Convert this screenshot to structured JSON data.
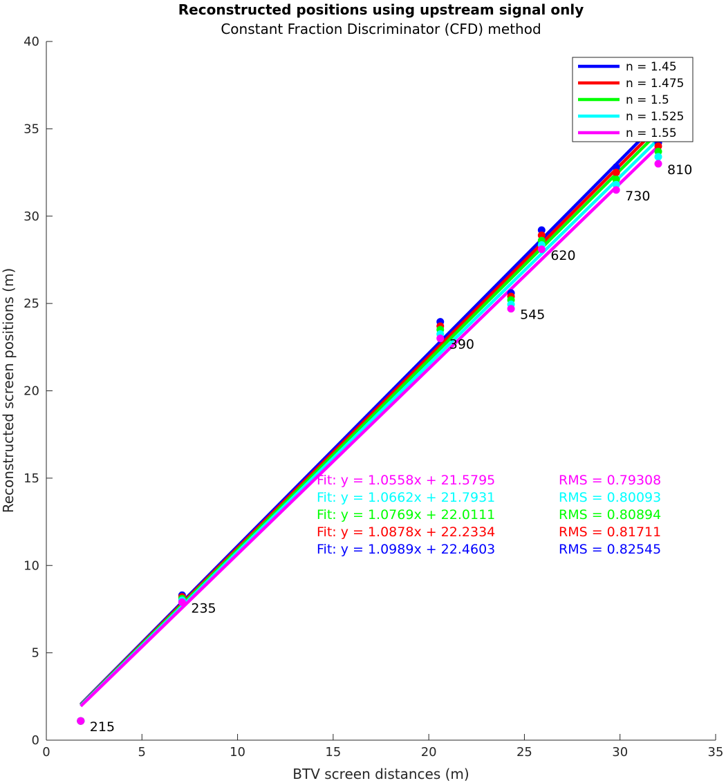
{
  "chart_data": {
    "type": "scatter",
    "title": "Reconstructed positions using upstream signal only",
    "subtitle": "Constant Fraction Discriminator (CFD) method",
    "xlabel": "BTV screen distances (m)",
    "ylabel": "Reconstructed screen positions (m)",
    "xlim": [
      0,
      35
    ],
    "ylim": [
      0,
      40
    ],
    "xticks": [
      0,
      5,
      10,
      15,
      20,
      25,
      30,
      35
    ],
    "yticks": [
      0,
      5,
      10,
      15,
      20,
      25,
      30,
      35,
      40
    ],
    "legend_position": "top-right",
    "x": [
      1.8,
      7.1,
      20.6,
      24.3,
      25.9,
      29.8,
      32.0
    ],
    "point_labels": [
      "215",
      "235",
      "390",
      "545",
      "620",
      "730",
      "810"
    ],
    "series": [
      {
        "name": "n = 1.45",
        "color": "#0000ff",
        "values": [
          1.1,
          8.3,
          23.95,
          25.6,
          29.2,
          32.8,
          34.2
        ],
        "line": [
          [
            1.8,
            2.05
          ],
          [
            32.0,
            35.4
          ]
        ],
        "fit": "Fit: y = 1.0989x + 22.4603",
        "rms": "RMS = 0.82545"
      },
      {
        "name": "n = 1.475",
        "color": "#ff0000",
        "values": [
          1.1,
          8.2,
          23.7,
          25.4,
          28.9,
          32.5,
          34.0
        ],
        "line": [
          [
            1.8,
            2.02
          ],
          [
            32.0,
            35.1
          ]
        ],
        "fit": "Fit: y = 1.0878x + 22.2334",
        "rms": "RMS = 0.81711"
      },
      {
        "name": "n = 1.5",
        "color": "#00ff00",
        "values": [
          1.1,
          8.1,
          23.5,
          25.2,
          28.6,
          32.1,
          33.7
        ],
        "line": [
          [
            1.8,
            2.0
          ],
          [
            32.0,
            34.8
          ]
        ],
        "fit": "Fit: y = 1.0769x + 22.0111",
        "rms": "RMS = 0.80894"
      },
      {
        "name": "n = 1.525",
        "color": "#00ffff",
        "values": [
          1.1,
          8.0,
          23.25,
          24.95,
          28.35,
          31.8,
          33.4
        ],
        "line": [
          [
            1.8,
            1.98
          ],
          [
            32.0,
            34.4
          ]
        ],
        "fit": "Fit: y = 1.0662x + 21.7931",
        "rms": "RMS = 0.80093"
      },
      {
        "name": "n = 1.55",
        "color": "#ff00ff",
        "values": [
          1.1,
          7.9,
          23.0,
          24.7,
          28.1,
          31.5,
          33.0
        ],
        "line": [
          [
            1.8,
            1.95
          ],
          [
            32.0,
            34.0
          ]
        ],
        "fit": "Fit: y = 1.0558x + 21.5795",
        "rms": "RMS = 0.79308"
      }
    ]
  }
}
